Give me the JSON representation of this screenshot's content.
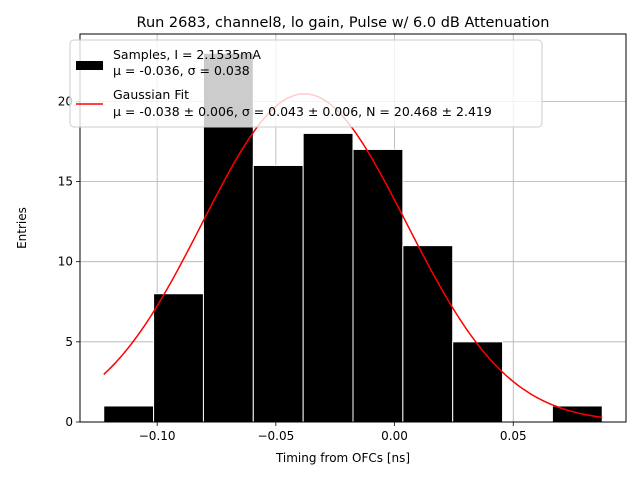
{
  "chart_data": {
    "type": "bar",
    "title": "Run 2683, channel8, lo gain, Pulse w/ 6.0 dB Attenuation",
    "xlabel": "Timing from OFCs [ns]",
    "ylabel": "Entries",
    "xlim": [
      -0.1325,
      0.0975
    ],
    "ylim": [
      0,
      24.2
    ],
    "xticks": [
      -0.1,
      -0.05,
      0.0,
      0.05
    ],
    "xtick_labels": [
      "−0.10",
      "−0.05",
      "0.00",
      "0.05"
    ],
    "yticks": [
      0,
      5,
      10,
      15,
      20
    ],
    "ytick_labels": [
      "0",
      "5",
      "10",
      "15",
      "20"
    ],
    "grid": true,
    "legend_position": "top-left",
    "bin_edges": [
      -0.1225,
      -0.1015,
      -0.0805,
      -0.0595,
      -0.0385,
      -0.0175,
      0.0035,
      0.0245,
      0.0455,
      0.0665,
      0.0875
    ],
    "counts": [
      1,
      8,
      23,
      16,
      18,
      17,
      11,
      5,
      0,
      1
    ],
    "bar_color": "#000000",
    "bar_edge_color": "#ffffff",
    "fit_color": "#ff0000",
    "fit": {
      "mu": -0.038,
      "sigma": 0.043,
      "N": 20.468
    },
    "legend": [
      {
        "kind": "patch",
        "line1": "Samples, I = 2.1535mA",
        "line2": "μ = -0.036, σ = 0.038"
      },
      {
        "kind": "line",
        "line1": "Gaussian Fit",
        "line2": "μ = -0.038 ± 0.006, σ = 0.043 ± 0.006, N = 20.468 ± 2.419"
      }
    ]
  }
}
